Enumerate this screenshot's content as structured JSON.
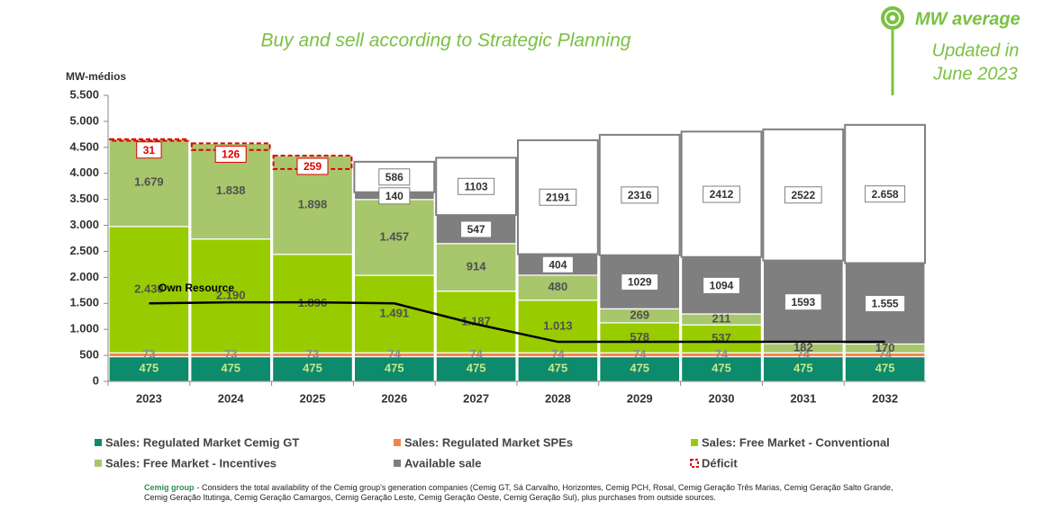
{
  "chart_data": {
    "type": "stacked-bar",
    "title": "Buy and sell according to Strategic Planning",
    "badge": "MW average",
    "updated_note": [
      "Updated in",
      "June 2023"
    ],
    "y_label": "MW-médios",
    "categories": [
      "2023",
      "2024",
      "2025",
      "2026",
      "2027",
      "2028",
      "2029",
      "2030",
      "2031",
      "2032"
    ],
    "ylim": [
      0,
      5500
    ],
    "yticks": [
      0,
      500,
      {
        "value": 1000,
        "label": "1.000"
      },
      {
        "value": 1500,
        "label": "1.500"
      },
      {
        "value": 2000,
        "label": "2.000"
      },
      {
        "value": 2500,
        "label": "2.500"
      },
      {
        "value": 3000,
        "label": "3.000"
      },
      {
        "value": 3500,
        "label": "3.500"
      },
      {
        "value": 4000,
        "label": "4.000"
      },
      {
        "value": 4500,
        "label": "4.500"
      },
      {
        "value": 5000,
        "label": "5.000"
      },
      {
        "value": 5500,
        "label": "5.500"
      }
    ],
    "series": [
      {
        "name": "Sales: Regulated Market Cemig GT",
        "color": "#0e8a6c",
        "values": [
          475,
          475,
          475,
          475,
          475,
          475,
          475,
          475,
          475,
          475
        ]
      },
      {
        "name": "Sales: Regulated Market SPEs",
        "color": "#f4844c",
        "values": [
          73,
          73,
          73,
          74,
          74,
          74,
          74,
          74,
          74,
          74
        ]
      },
      {
        "name": "Sales: Free Market - Conventional",
        "color": "#99cc00",
        "values": [
          2430,
          2190,
          1896,
          1491,
          1187,
          1013,
          578,
          537,
          null,
          null
        ],
        "value_labels": [
          "2.430",
          "2.190",
          "1.896",
          "1.491",
          "1.187",
          "1.013",
          "578",
          "537",
          null,
          null
        ]
      },
      {
        "name": "Sales: Free Market - Incentives",
        "color": "#a8c66c",
        "values": [
          1679,
          1838,
          1898,
          1457,
          914,
          480,
          269,
          211,
          182,
          170
        ],
        "value_labels": [
          "1.679",
          "1.838",
          "1.898",
          "1.457",
          "914",
          "480",
          "269",
          "211",
          "182",
          "170"
        ]
      },
      {
        "name": "Available sale",
        "color": "#7f7f7f",
        "values": [
          null,
          null,
          null,
          140,
          547,
          404,
          1029,
          1094,
          1593,
          1555
        ],
        "value_labels": [
          null,
          null,
          null,
          "140",
          "547",
          "404",
          "1029",
          "1094",
          "1593",
          "1.555"
        ]
      },
      {
        "color": "#ffffff",
        "values": [
          null,
          null,
          null,
          586,
          1103,
          2191,
          2316,
          2412,
          2522,
          2658
        ],
        "value_labels": [
          null,
          null,
          null,
          "586",
          "1103",
          "2191",
          "2316",
          "2412",
          "2522",
          "2.658"
        ]
      }
    ],
    "deficit": {
      "name": "Déficit",
      "color": "#e00000",
      "dashed": true,
      "values": [
        31,
        126,
        259,
        null,
        null,
        null,
        null,
        null,
        null,
        null
      ]
    },
    "own_resource": {
      "name": "Own Resource",
      "color": "#000000",
      "values": [
        1500,
        1520,
        1520,
        1500,
        1100,
        760,
        760,
        760,
        760,
        760
      ]
    },
    "footnote": {
      "label": "Cemig group",
      "text": "- Considers the total availability of the Cemig group's generation companies (Cemig GT, Sá Carvalho, Horizontes, Cemig PCH, Rosal, Cemig Geração Três Marias, Cemig Geração Salto Grande, Cemig Geração Itutinga, Cemig Geração Camargos, Cemig Geração Leste, Cemig Geração Oeste, Cemig Geração Sul), plus purchases from outside sources."
    }
  }
}
